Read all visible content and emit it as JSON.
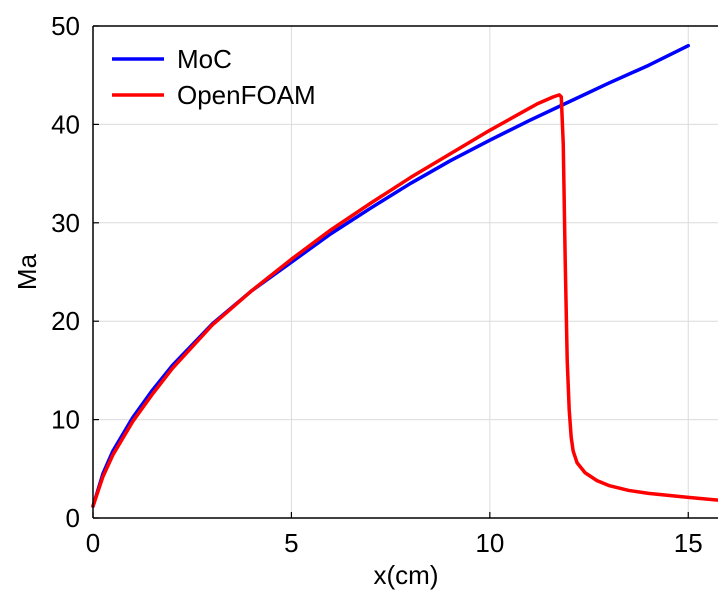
{
  "chart_data": {
    "type": "line",
    "xlabel": "x(cm)",
    "ylabel": "Ma",
    "xlim": [
      0,
      15.8
    ],
    "ylim": [
      0,
      50
    ],
    "xticks": [
      0,
      5,
      10,
      15
    ],
    "yticks": [
      0,
      10,
      20,
      30,
      40,
      50
    ],
    "grid": true,
    "legend_position": "top-left",
    "series": [
      {
        "name": "MoC",
        "color": "#0000ff",
        "x": [
          0,
          0.25,
          0.5,
          1,
          1.5,
          2,
          3,
          4,
          5,
          6,
          7,
          8,
          9,
          10,
          11,
          12,
          13,
          14,
          15
        ],
        "y": [
          1.2,
          4.5,
          6.8,
          10.2,
          13.0,
          15.5,
          19.7,
          23.1,
          26.0,
          28.9,
          31.5,
          34.0,
          36.3,
          38.4,
          40.4,
          42.3,
          44.2,
          46.0,
          48.0
        ]
      },
      {
        "name": "OpenFOAM",
        "color": "#ff0000",
        "x": [
          0,
          0.25,
          0.5,
          1,
          1.5,
          2,
          3,
          4,
          5,
          6,
          7,
          8,
          9,
          10,
          10.8,
          11.2,
          11.6,
          11.75,
          11.8,
          11.85,
          11.9,
          11.95,
          12.0,
          12.05,
          12.1,
          12.2,
          12.4,
          12.7,
          13.0,
          13.5,
          14,
          15,
          15.8
        ],
        "y": [
          1.2,
          4.2,
          6.4,
          9.8,
          12.6,
          15.2,
          19.6,
          23.1,
          26.3,
          29.3,
          32.0,
          34.6,
          37.0,
          39.4,
          41.2,
          42.1,
          42.8,
          43.0,
          42.8,
          38.0,
          26.0,
          16.0,
          11.0,
          8.2,
          6.8,
          5.6,
          4.6,
          3.8,
          3.3,
          2.8,
          2.5,
          2.1,
          1.8
        ]
      }
    ]
  }
}
